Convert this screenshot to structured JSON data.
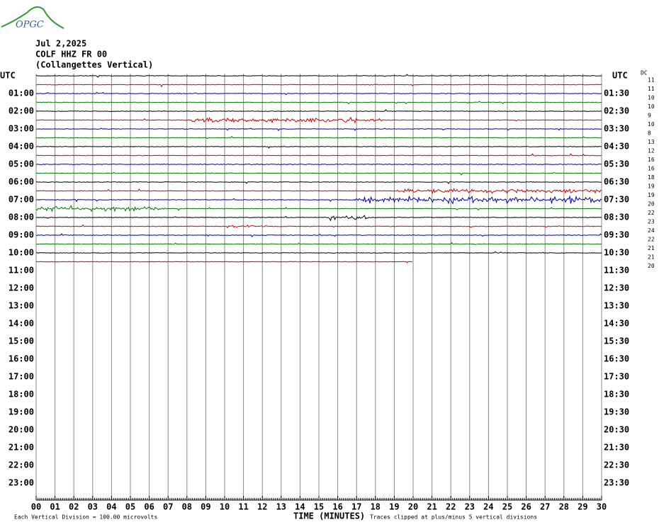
{
  "header": {
    "logo": "OPGC",
    "date": "Jul 2,2025",
    "station": "COLF HHZ FR 00",
    "location": "(Collangettes Vertical)"
  },
  "left_axis": {
    "title": "UTC",
    "labels": [
      "01:00",
      "02:00",
      "03:00",
      "04:00",
      "05:00",
      "06:00",
      "07:00",
      "08:00",
      "09:00",
      "10:00",
      "11:00",
      "12:00",
      "13:00",
      "14:00",
      "15:00",
      "16:00",
      "17:00",
      "18:00",
      "19:00",
      "20:00",
      "21:00",
      "22:00",
      "23:00"
    ]
  },
  "right_axis": {
    "title": "UTC",
    "labels": [
      "01:30",
      "02:30",
      "03:30",
      "04:30",
      "05:30",
      "06:30",
      "07:30",
      "08:30",
      "09:30",
      "10:30",
      "11:30",
      "12:30",
      "13:30",
      "14:30",
      "15:30",
      "16:30",
      "17:30",
      "18:30",
      "19:30",
      "20:30",
      "21:30",
      "22:30",
      "23:30"
    ]
  },
  "dc": {
    "title": "DC",
    "values": [
      "11",
      "11",
      "10",
      "10",
      "9",
      "10",
      "8",
      "13",
      "12",
      "16",
      "16",
      "18",
      "19",
      "19",
      "20",
      "22",
      "23",
      "24",
      "22",
      "21",
      "21",
      "20"
    ]
  },
  "x_axis": {
    "title": "TIME (MINUTES)",
    "labels": [
      "00",
      "01",
      "02",
      "03",
      "04",
      "05",
      "06",
      "07",
      "08",
      "09",
      "10",
      "11",
      "12",
      "13",
      "14",
      "15",
      "16",
      "17",
      "18",
      "19",
      "20",
      "21",
      "22",
      "23",
      "24",
      "25",
      "26",
      "27",
      "28",
      "29",
      "30"
    ]
  },
  "footer": {
    "scale": "Each Vertical Division =  100.00 microvolts",
    "clip": "Traces clipped at plus/minus 5 vertical divisions"
  }
}
